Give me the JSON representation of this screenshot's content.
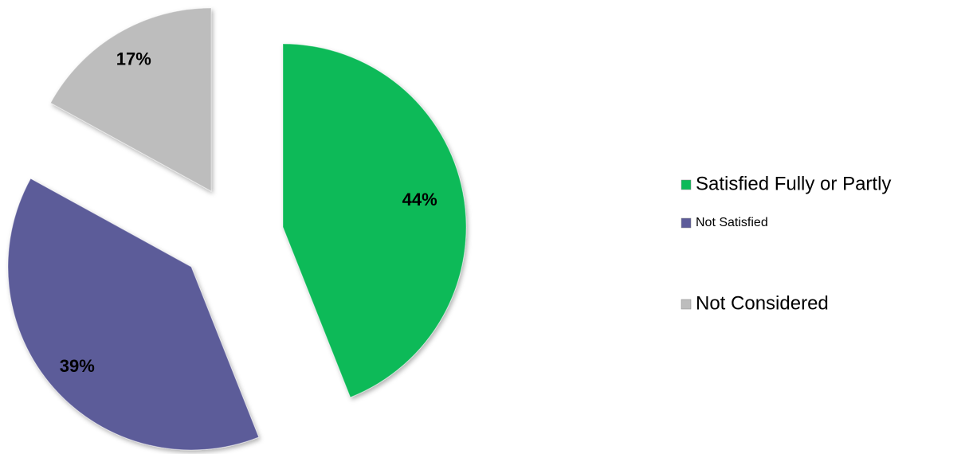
{
  "chart_data": {
    "type": "pie",
    "categories": [
      "Satisfied Fully or Partly",
      "Not Satisfied",
      "Not Considered"
    ],
    "values": [
      44,
      39,
      17
    ],
    "value_labels": [
      "44%",
      "39%",
      "17%"
    ],
    "colors": [
      "#0cba58",
      "#5c5b99",
      "#bdbdbd"
    ],
    "legend": "right"
  }
}
